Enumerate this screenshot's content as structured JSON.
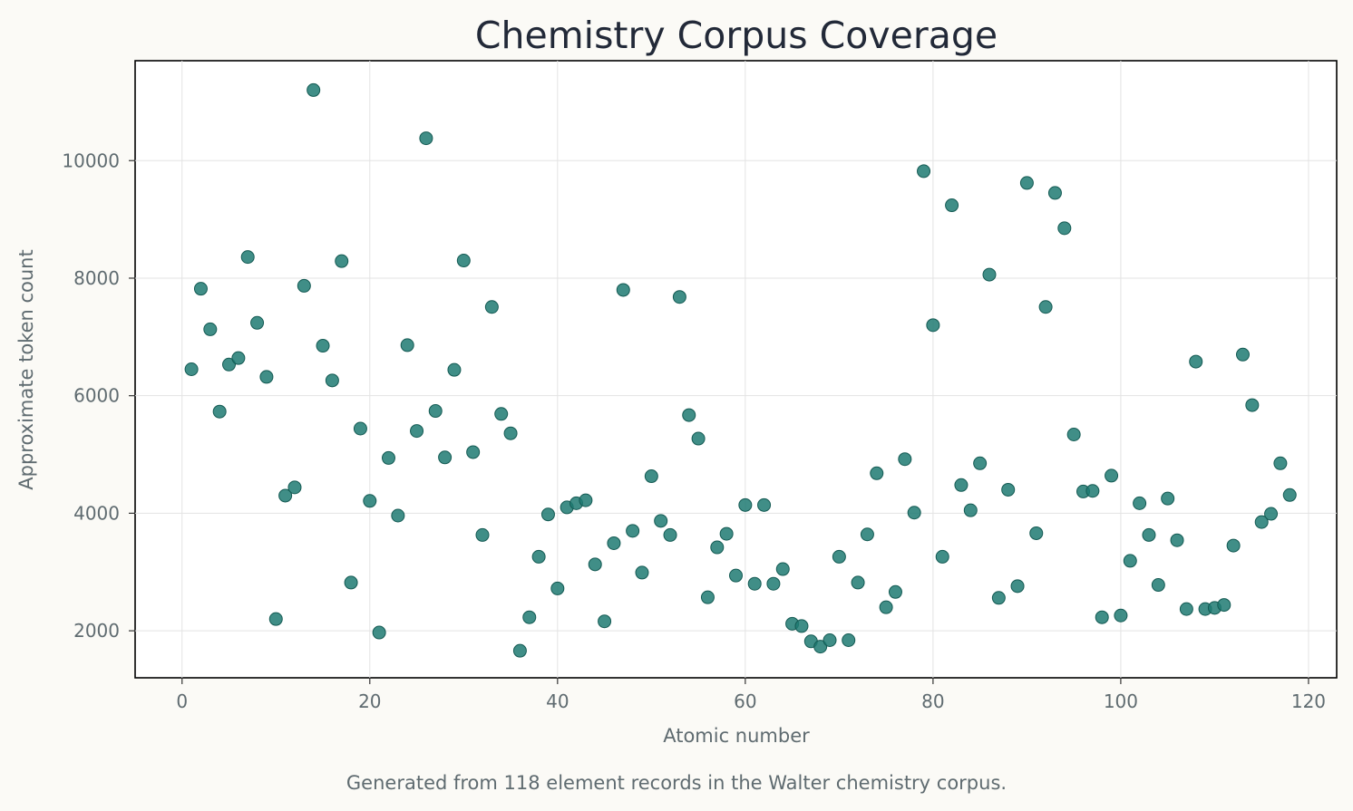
{
  "chart_data": {
    "type": "scatter",
    "title": "Chemistry Corpus Coverage",
    "xlabel": "Atomic number",
    "ylabel": "Approximate token count",
    "caption": "Generated from 118 element records in the Walter chemistry corpus.",
    "xlim": [
      -5,
      123
    ],
    "ylim": [
      1200,
      11700
    ],
    "xticks": [
      0,
      20,
      40,
      60,
      80,
      100,
      120
    ],
    "yticks": [
      2000,
      4000,
      6000,
      8000,
      10000
    ],
    "grid": true,
    "point_color": "#1f7a72",
    "series": [
      {
        "x": [
          1,
          2,
          3,
          4,
          5,
          6,
          7,
          8,
          9,
          10,
          11,
          12,
          13,
          14,
          15,
          16,
          17,
          18,
          19,
          20,
          21,
          22,
          23,
          24,
          25,
          26,
          27,
          28,
          29,
          30,
          31,
          32,
          33,
          34,
          35,
          36,
          37,
          38,
          39,
          40,
          41,
          42,
          43,
          44,
          45,
          46,
          47,
          48,
          49,
          50,
          51,
          52,
          53,
          54,
          55,
          56,
          57,
          58,
          59,
          60,
          61,
          62,
          63,
          64,
          65,
          66,
          67,
          68,
          69,
          70,
          71,
          72,
          73,
          74,
          75,
          76,
          77,
          78,
          79,
          80,
          81,
          82,
          83,
          84,
          85,
          86,
          87,
          88,
          89,
          90,
          91,
          92,
          93,
          94,
          95,
          96,
          97,
          98,
          99,
          100,
          101,
          102,
          103,
          104,
          105,
          106,
          107,
          108,
          109,
          110,
          111,
          112,
          113,
          114,
          115,
          116,
          117,
          118
        ],
        "y": [
          6450,
          7820,
          7130,
          5730,
          6530,
          6640,
          8360,
          7240,
          6320,
          2200,
          4300,
          4440,
          7870,
          11200,
          6850,
          6260,
          8290,
          2820,
          5440,
          4210,
          1970,
          4940,
          3960,
          6860,
          5400,
          10380,
          5740,
          4950,
          6440,
          8300,
          5040,
          3630,
          7510,
          5690,
          5360,
          1660,
          2230,
          3260,
          3980,
          2720,
          4100,
          4170,
          4220,
          3130,
          2160,
          3490,
          7800,
          3700,
          2990,
          4630,
          3870,
          3630,
          7680,
          5670,
          5270,
          2570,
          3420,
          3650,
          2940,
          4140,
          2800,
          4140,
          2800,
          3050,
          2120,
          2080,
          1820,
          1730,
          1840,
          3260,
          1840,
          2820,
          3640,
          4680,
          2400,
          2660,
          4920,
          4010,
          9820,
          7200,
          3260,
          9240,
          4480,
          4050,
          4850,
          8060,
          2560,
          4400,
          2760,
          9620,
          3660,
          7510,
          9450,
          8850,
          5340,
          4370,
          4380,
          2230,
          4640,
          2260,
          3190,
          4170,
          3630,
          2780,
          4250,
          3540,
          2370,
          6580,
          2370,
          2390,
          2440,
          3450,
          6700,
          5840,
          3850,
          3990,
          4850,
          4310
        ]
      }
    ]
  }
}
